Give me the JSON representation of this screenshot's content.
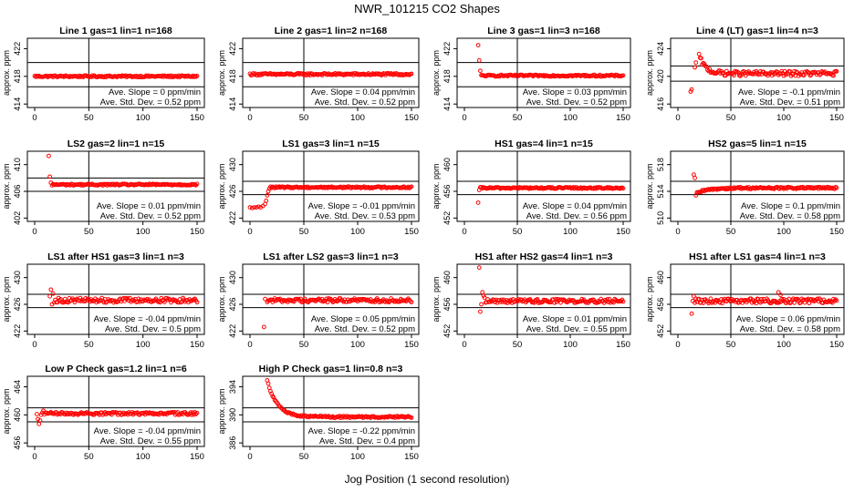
{
  "figure": {
    "title": "NWR_101215  CO2 Shapes",
    "xlabel": "Jog Position (1 second resolution)",
    "ylabel": "approx. ppm",
    "xticks": [
      "0",
      "50",
      "100",
      "150"
    ],
    "marker_color": "#ff0000"
  },
  "chart_data": [
    {
      "type": "scatter",
      "title": "Line 1 gas=1 lin=1 n=168",
      "ylim": [
        413.5,
        423.5
      ],
      "yticks": [
        414,
        418,
        422
      ],
      "hlines": [
        416.5,
        420
      ],
      "vline": 50,
      "xlim": [
        0,
        150
      ],
      "shape": {
        "base": 418.0,
        "noise": 0.12,
        "start": 0,
        "points": []
      },
      "slope_text": "Ave. Slope = 0  ppm/min",
      "std_text": "Ave. Std. Dev. = 0.52  ppm"
    },
    {
      "type": "scatter",
      "title": "Line 2 gas=1 lin=2 n=168",
      "ylim": [
        413.5,
        423.5
      ],
      "yticks": [
        414,
        418,
        422
      ],
      "hlines": [
        416.5,
        420
      ],
      "vline": 50,
      "xlim": [
        0,
        150
      ],
      "shape": {
        "base": 418.3,
        "noise": 0.15,
        "start": 0,
        "points": []
      },
      "slope_text": "Ave. Slope = 0.04  ppm/min",
      "std_text": "Ave. Std. Dev. = 0.52  ppm"
    },
    {
      "type": "scatter",
      "title": "Line 3 gas=1 lin=3 n=168",
      "ylim": [
        413.5,
        423.5
      ],
      "yticks": [
        414,
        418,
        422
      ],
      "hlines": [
        416.5,
        420
      ],
      "vline": 50,
      "xlim": [
        0,
        150
      ],
      "shape": {
        "base": 418.1,
        "noise": 0.12,
        "start": 16,
        "points": [
          [
            13,
            422.5
          ],
          [
            14,
            420.3
          ],
          [
            15,
            418.8
          ]
        ]
      },
      "slope_text": "Ave. Slope = 0.03  ppm/min",
      "std_text": "Ave. Std. Dev. = 0.52  ppm"
    },
    {
      "type": "scatter",
      "title": "Line 4 (LT) gas=1 lin=4 n=3",
      "ylim": [
        415.5,
        425.5
      ],
      "yticks": [
        416,
        420,
        424
      ],
      "hlines": [
        419.3,
        421.5
      ],
      "vline": 50,
      "xlim": [
        0,
        150
      ],
      "shape": {
        "base": 420.4,
        "noise": 0.35,
        "start": 20,
        "decay": {
          "amp": 2.6,
          "tau": 6
        },
        "points": [
          [
            12,
            417.8
          ],
          [
            13,
            418.1
          ],
          [
            16,
            421.3
          ],
          [
            17,
            422.0
          ]
        ]
      },
      "slope_text": "Ave. Slope = -0.1  ppm/min",
      "std_text": "Ave. Std. Dev. = 0.51  ppm"
    },
    {
      "type": "scatter",
      "title": "LS2 gas=2 lin=1 n=15",
      "ylim": [
        401.5,
        412
      ],
      "yticks": [
        402,
        406,
        410
      ],
      "hlines": [
        406,
        408
      ],
      "vline": 50,
      "xlim": [
        0,
        150
      ],
      "shape": {
        "base": 407.0,
        "noise": 0.12,
        "start": 17,
        "points": [
          [
            13,
            411.3
          ],
          [
            14,
            408.2
          ],
          [
            15,
            407.3
          ],
          [
            16,
            406.9
          ]
        ]
      },
      "slope_text": "Ave. Slope = 0.01  ppm/min",
      "std_text": "Ave. Std. Dev. = 0.52  ppm"
    },
    {
      "type": "scatter",
      "title": "LS1 gas=3 lin=1 n=15",
      "ylim": [
        421.5,
        432
      ],
      "yticks": [
        422,
        426,
        430
      ],
      "hlines": [
        425.5,
        427.5
      ],
      "vline": 50,
      "xlim": [
        0,
        150
      ],
      "shape": {
        "base": 426.6,
        "noise": 0.12,
        "start": 19,
        "points": [
          [
            0,
            423.6
          ],
          [
            2,
            423.5
          ],
          [
            4,
            423.6
          ],
          [
            6,
            423.6
          ],
          [
            8,
            423.7
          ],
          [
            10,
            423.6
          ],
          [
            12,
            423.8
          ],
          [
            14,
            424.1
          ],
          [
            15,
            424.6
          ],
          [
            16,
            425.4
          ],
          [
            17,
            426.0
          ],
          [
            18,
            426.4
          ]
        ]
      },
      "slope_text": "Ave. Slope = -0.01  ppm/min",
      "std_text": "Ave. Std. Dev. = 0.53  ppm"
    },
    {
      "type": "scatter",
      "title": "HS1 gas=4 lin=1 n=15",
      "ylim": [
        451.5,
        462
      ],
      "yticks": [
        452,
        456,
        460
      ],
      "hlines": [
        455.5,
        457.5
      ],
      "vline": 50,
      "xlim": [
        0,
        150
      ],
      "shape": {
        "base": 456.5,
        "noise": 0.12,
        "start": 15,
        "points": [
          [
            13,
            454.3
          ],
          [
            14,
            456.2
          ]
        ]
      },
      "slope_text": "Ave. Slope = 0.04  ppm/min",
      "std_text": "Ave. Std. Dev. = 0.56  ppm"
    },
    {
      "type": "scatter",
      "title": "HS2 gas=5 lin=1 n=15",
      "ylim": [
        509.5,
        520
      ],
      "yticks": [
        510,
        514,
        518
      ],
      "hlines": [
        513.5,
        515.5
      ],
      "vline": 50,
      "xlim": [
        0,
        150
      ],
      "shape": {
        "base": 514.5,
        "noise": 0.15,
        "start": 18,
        "decay": {
          "amp": -0.8,
          "tau": 10
        },
        "points": [
          [
            15,
            516.5
          ],
          [
            16,
            516.0
          ],
          [
            17,
            513.4
          ]
        ]
      },
      "slope_text": "Ave. Slope = 0.1  ppm/min",
      "std_text": "Ave. Std. Dev. = 0.58  ppm"
    },
    {
      "type": "scatter",
      "title": "LS1 after HS1 gas=3 lin=1 n=3",
      "ylim": [
        421.5,
        432
      ],
      "yticks": [
        422,
        426,
        430
      ],
      "hlines": [
        425.5,
        427.5
      ],
      "vline": 50,
      "xlim": [
        0,
        150
      ],
      "shape": {
        "base": 426.6,
        "noise": 0.35,
        "start": 18,
        "points": [
          [
            14,
            427.2
          ],
          [
            15,
            428.2
          ],
          [
            16,
            426.0
          ],
          [
            17,
            427.6
          ]
        ]
      },
      "slope_text": "Ave. Slope = -0.04  ppm/min",
      "std_text": "Ave. Std. Dev. = 0.5  ppm"
    },
    {
      "type": "scatter",
      "title": "LS1 after LS2 gas=3 lin=1 n=3",
      "ylim": [
        421.5,
        432
      ],
      "yticks": [
        422,
        426,
        430
      ],
      "hlines": [
        425.5,
        427.5
      ],
      "vline": 50,
      "xlim": [
        0,
        150
      ],
      "shape": {
        "base": 426.6,
        "noise": 0.3,
        "start": 16,
        "points": [
          [
            13,
            422.6
          ],
          [
            14,
            426.8
          ]
        ]
      },
      "slope_text": "Ave. Slope = 0.05  ppm/min",
      "std_text": "Ave. Std. Dev. = 0.52  ppm"
    },
    {
      "type": "scatter",
      "title": "HS1 after HS2 gas=4 lin=1 n=3",
      "ylim": [
        451.5,
        462
      ],
      "yticks": [
        452,
        456,
        460
      ],
      "hlines": [
        455.5,
        457.5
      ],
      "vline": 50,
      "xlim": [
        0,
        150
      ],
      "shape": {
        "base": 456.5,
        "noise": 0.3,
        "start": 20,
        "points": [
          [
            14,
            461.5
          ],
          [
            15,
            454.9
          ],
          [
            16,
            456.0
          ],
          [
            17,
            457.8
          ],
          [
            18,
            457.3
          ],
          [
            19,
            457.0
          ]
        ]
      },
      "slope_text": "Ave. Slope = 0.01  ppm/min",
      "std_text": "Ave. Std. Dev. = 0.55  ppm"
    },
    {
      "type": "scatter",
      "title": "HS1 after LS1 gas=4 lin=1 n=3",
      "ylim": [
        451.5,
        462
      ],
      "yticks": [
        452,
        456,
        460
      ],
      "hlines": [
        455.5,
        457.5
      ],
      "vline": 50,
      "xlim": [
        0,
        150
      ],
      "shape": {
        "base": 456.5,
        "noise": 0.35,
        "start": 16,
        "points": [
          [
            13,
            454.6
          ],
          [
            14,
            456.5
          ],
          [
            15,
            457.2
          ],
          [
            95,
            457.8
          ],
          [
            97,
            457.4
          ]
        ]
      },
      "slope_text": "Ave. Slope = 0.06  ppm/min",
      "std_text": "Ave. Std. Dev. = 0.58  ppm"
    },
    {
      "type": "scatter",
      "title": "Low P Check gas=1.2 lin=1 n=6",
      "ylim": [
        455.5,
        465.5
      ],
      "yticks": [
        456,
        460,
        464
      ],
      "hlines": [
        459,
        461
      ],
      "vline": 50,
      "xlim": [
        0,
        150
      ],
      "shape": {
        "base": 460.2,
        "noise": 0.2,
        "start": 9,
        "points": [
          [
            2,
            460.1
          ],
          [
            3,
            459.4
          ],
          [
            4,
            458.7
          ],
          [
            5,
            459.2
          ],
          [
            6,
            460.0
          ],
          [
            7,
            460.3
          ],
          [
            8,
            460.6
          ]
        ]
      },
      "slope_text": "Ave. Slope = -0.04  ppm/min",
      "std_text": "Ave. Std. Dev. = 0.55  ppm"
    },
    {
      "type": "scatter",
      "title": "High P Check gas=1 lin=0.8 n=3",
      "ylim": [
        385.5,
        395.5
      ],
      "yticks": [
        386,
        390,
        394
      ],
      "hlines": [
        389,
        391
      ],
      "vline": 50,
      "xlim": [
        0,
        150
      ],
      "shape": {
        "base": 389.7,
        "noise": 0.13,
        "start": 16,
        "decay": {
          "amp": 5.3,
          "tau": 9
        },
        "points": []
      },
      "slope_text": "Ave. Slope = -0.22  ppm/min",
      "std_text": "Ave. Std. Dev. = 0.4  ppm"
    }
  ]
}
